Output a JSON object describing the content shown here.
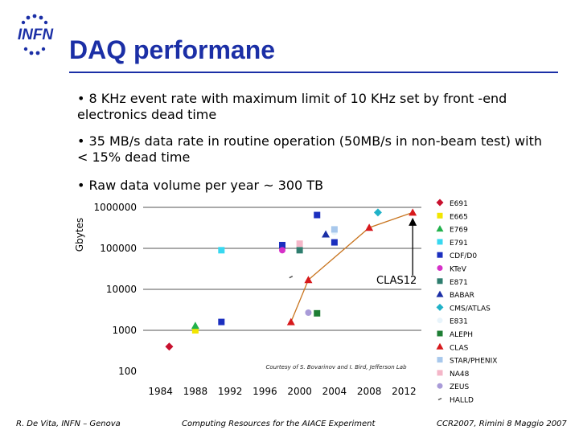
{
  "header": {
    "logo_text": "INFN",
    "title": "DAQ performane"
  },
  "bullets": [
    "• 8 KHz event rate with maximum limit of 10 KHz set by front -end electronics dead time",
    "• 35 MB/s data rate in routine operation (50MB/s in non-beam test) with < 15% dead time",
    "• Raw data volume per year ~ 300 TB"
  ],
  "chart_data": {
    "type": "scatter",
    "ylabel": "Gbytes",
    "yscale": "log",
    "ylim": [
      100,
      1000000
    ],
    "xlim": [
      1982,
      2014
    ],
    "y_ticks": [
      "1000000",
      "100000",
      "10000",
      "1000",
      "100"
    ],
    "x_ticks": [
      "1984",
      "1988",
      "1992",
      "1996",
      "2000",
      "2004",
      "2008",
      "2012"
    ],
    "annotation": "CLAS12",
    "credit": "Courtesy of S. Bovarinov and I. Bird, Jefferson Lab",
    "legend_position": "right",
    "series": [
      {
        "name": "E691",
        "marker": "diamond",
        "color": "#c8102e",
        "points": [
          [
            1985,
            400
          ]
        ]
      },
      {
        "name": "E665",
        "marker": "square",
        "color": "#f2e600",
        "points": [
          [
            1988,
            1000
          ]
        ]
      },
      {
        "name": "E769",
        "marker": "triangle",
        "color": "#22b14c",
        "points": [
          [
            1988,
            1300
          ]
        ]
      },
      {
        "name": "E791",
        "marker": "square",
        "color": "#38d8f0",
        "points": [
          [
            1991,
            90000
          ]
        ]
      },
      {
        "name": "CDF/D0",
        "marker": "square",
        "color": "#1b2fbf",
        "points": [
          [
            1991,
            1600
          ],
          [
            1998,
            120000
          ],
          [
            2002,
            650000
          ],
          [
            2004,
            140000
          ]
        ]
      },
      {
        "name": "KTeV",
        "marker": "circle",
        "color": "#d630c8",
        "points": [
          [
            1998,
            90000
          ]
        ]
      },
      {
        "name": "E871",
        "marker": "square",
        "color": "#2e7d6e",
        "points": [
          [
            2000,
            90000
          ]
        ]
      },
      {
        "name": "BABAR",
        "marker": "triangle",
        "color": "#1b2fa6",
        "points": [
          [
            2003,
            220000
          ]
        ]
      },
      {
        "name": "CMS/ATLAS",
        "marker": "diamond",
        "color": "#20b2c8",
        "points": [
          [
            2009,
            750000
          ]
        ]
      },
      {
        "name": "E831",
        "marker": "circle",
        "color": "#e8f4fb",
        "points": [
          [
            2004,
            250000
          ]
        ]
      },
      {
        "name": "ALEPH",
        "marker": "square",
        "color": "#1e7e34",
        "points": [
          [
            2002,
            2600
          ]
        ]
      },
      {
        "name": "CLAS",
        "marker": "triangle",
        "color": "#d7191c",
        "points": [
          [
            1999,
            1600
          ],
          [
            2001,
            17000
          ],
          [
            2008,
            320000
          ],
          [
            2013,
            750000
          ]
        ]
      },
      {
        "name": "STAR/PHENIX",
        "marker": "square",
        "color": "#a8c8ec",
        "points": [
          [
            2004,
            290000
          ]
        ]
      },
      {
        "name": "NA48",
        "marker": "square",
        "color": "#f4b6c8",
        "points": [
          [
            2000,
            130000
          ]
        ]
      },
      {
        "name": "ZEUS",
        "marker": "circle",
        "color": "#a99bd8",
        "points": [
          [
            2001,
            2700
          ]
        ]
      },
      {
        "name": "HALLD",
        "marker": "dash",
        "color": "#555555",
        "points": [
          [
            1999,
            20000
          ]
        ]
      }
    ],
    "trend_line": {
      "color": "#c8741e",
      "points": [
        [
          1999,
          1600
        ],
        [
          2001,
          17000
        ],
        [
          2008,
          320000
        ],
        [
          2013,
          750000
        ]
      ]
    },
    "arrow": {
      "from": [
        2013,
        22000
      ],
      "to": [
        2013,
        560000
      ]
    }
  },
  "footer": {
    "left": "R. De Vita, INFN – Genova",
    "center": "Computing Resources for the AIACE Experiment",
    "right": "CCR2007, Rimini 8 Maggio 2007"
  }
}
